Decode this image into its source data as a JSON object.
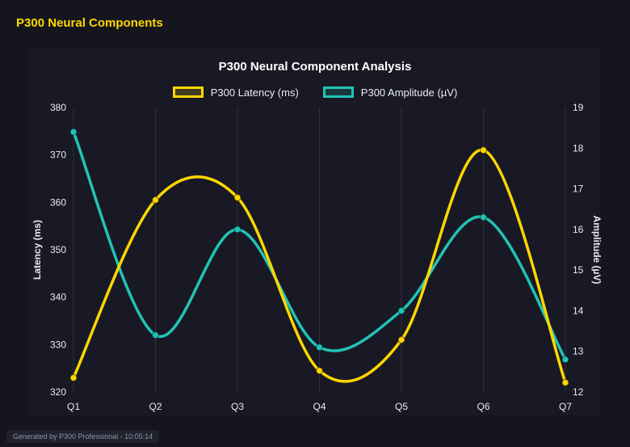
{
  "page": {
    "header_title": "P300 Neural Components",
    "footer_text": "Generated by P300 Professional - 10:05:14"
  },
  "chart_data": {
    "type": "line",
    "title": "P300 Neural Component Analysis",
    "categories": [
      "Q1",
      "Q2",
      "Q3",
      "Q4",
      "Q5",
      "Q6",
      "Q7"
    ],
    "series": [
      {
        "name": "P300 Latency (ms)",
        "axis": "left",
        "color": "#FFD700",
        "values": [
          323,
          360.5,
          361,
          324.5,
          331,
          371,
          322
        ]
      },
      {
        "name": "P300 Amplitude (µV)",
        "axis": "right",
        "color": "#20C4B6",
        "values": [
          18.4,
          13.4,
          16.0,
          13.1,
          14.0,
          16.3,
          12.8
        ]
      }
    ],
    "y_left": {
      "label": "Latency (ms)",
      "min": 320,
      "max": 380,
      "step": 10
    },
    "y_right": {
      "label": "Amplitude (µV)",
      "min": 12,
      "max": 19,
      "step": 1
    },
    "grid": "vertical",
    "legend_position": "top",
    "smoothing": "catmull-rom",
    "colors": {
      "background": "#15151D",
      "card": "#191925",
      "tick_text": "#E9ECF2",
      "grid_line": "rgba(255,255,255,0.10)"
    }
  }
}
